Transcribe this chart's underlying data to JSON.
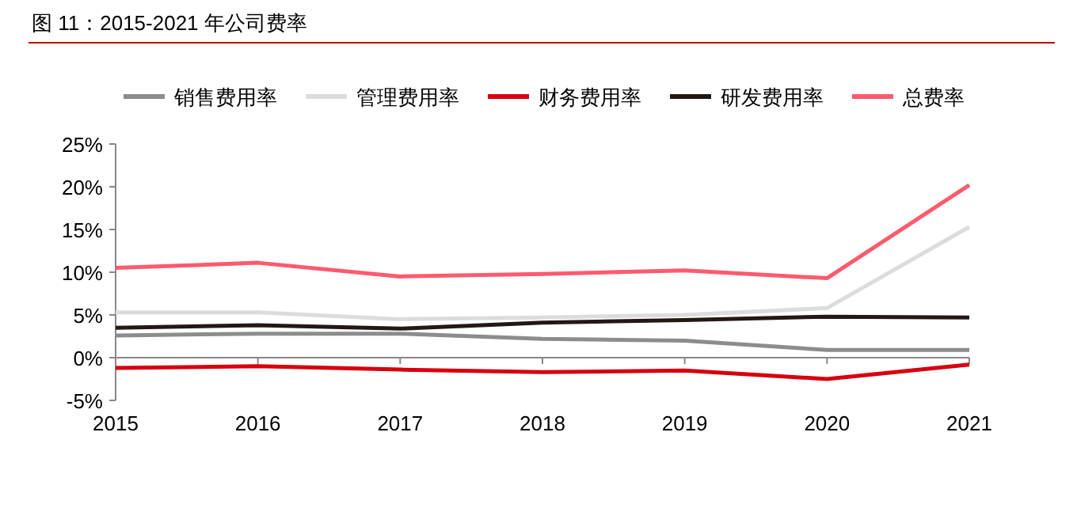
{
  "chart_data": {
    "type": "line",
    "title": "图 11：2015-2021 年公司费率",
    "categories": [
      "2015",
      "2016",
      "2017",
      "2018",
      "2019",
      "2020",
      "2021"
    ],
    "series": [
      {
        "name": "销售费用率",
        "color": "#8c8c8c",
        "values": [
          2.6,
          2.8,
          2.8,
          2.2,
          2.0,
          0.9,
          0.9
        ]
      },
      {
        "name": "管理费用率",
        "color": "#dcdcdc",
        "values": [
          5.3,
          5.3,
          4.5,
          4.7,
          5.0,
          5.8,
          15.3
        ]
      },
      {
        "name": "财务费用率",
        "color": "#d7000f",
        "values": [
          -1.2,
          -1.0,
          -1.4,
          -1.7,
          -1.5,
          -2.5,
          -0.8
        ]
      },
      {
        "name": "研发费用率",
        "color": "#231815",
        "values": [
          3.5,
          3.8,
          3.4,
          4.1,
          4.4,
          4.8,
          4.7
        ]
      },
      {
        "name": "总费率",
        "color": "#ff5a6e",
        "values": [
          10.5,
          11.1,
          9.5,
          9.8,
          10.2,
          9.3,
          20.2
        ]
      }
    ],
    "ylim": [
      -5,
      25
    ],
    "yticks": [
      {
        "value": -5,
        "label": "-5%"
      },
      {
        "value": 0,
        "label": "0%"
      },
      {
        "value": 5,
        "label": "5%"
      },
      {
        "value": 10,
        "label": "10%"
      },
      {
        "value": 15,
        "label": "15%"
      },
      {
        "value": 20,
        "label": "20%"
      },
      {
        "value": 25,
        "label": "25%"
      }
    ],
    "legend": "top",
    "marker": "none",
    "line_style": "solid"
  }
}
